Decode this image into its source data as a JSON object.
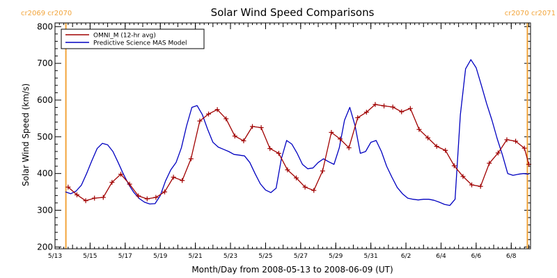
{
  "chart_data": {
    "type": "line",
    "title": "Solar Wind Speed Comparisons",
    "xlabel": "Month/Day from 2008-05-13 to 2008-06-09 (UT)",
    "ylabel": "Solar Wind Speed (km/s)",
    "x_unit": "day of year 2008",
    "xlim": [
      134,
      161.1
    ],
    "ylim": [
      195,
      810
    ],
    "yticks": [
      200,
      300,
      400,
      500,
      600,
      700,
      800
    ],
    "xticks": [
      {
        "value": 134,
        "label": "5/13"
      },
      {
        "value": 136,
        "label": "5/15"
      },
      {
        "value": 138,
        "label": "5/17"
      },
      {
        "value": 140,
        "label": "5/19"
      },
      {
        "value": 142,
        "label": "5/21"
      },
      {
        "value": 144,
        "label": "5/23"
      },
      {
        "value": 146,
        "label": "5/25"
      },
      {
        "value": 148,
        "label": "5/27"
      },
      {
        "value": 150,
        "label": "5/29"
      },
      {
        "value": 152,
        "label": "5/31"
      },
      {
        "value": 154,
        "label": "6/2"
      },
      {
        "value": 156,
        "label": "6/4"
      },
      {
        "value": 158,
        "label": "6/6"
      },
      {
        "value": 160,
        "label": "6/8"
      }
    ],
    "carrington_markers": [
      {
        "x": 134.62,
        "label": "cr2069 cr2070",
        "label_side": "left"
      },
      {
        "x": 160.92,
        "label": "cr2070 cr2071",
        "label_side": "right"
      }
    ],
    "legend_position": "top-left",
    "series": [
      {
        "name": "OMNI_M (12-hr avg)",
        "color": "#a00000",
        "marker": "+",
        "x": [
          134.75,
          135.25,
          135.75,
          136.25,
          136.75,
          137.25,
          137.75,
          138.25,
          138.75,
          139.25,
          139.75,
          140.25,
          140.75,
          141.25,
          141.75,
          142.25,
          142.75,
          143.25,
          143.75,
          144.25,
          144.75,
          145.25,
          145.75,
          146.25,
          146.75,
          147.25,
          147.75,
          148.25,
          148.75,
          149.25,
          149.75,
          150.25,
          150.75,
          151.25,
          151.75,
          152.25,
          152.75,
          153.25,
          153.75,
          154.25,
          154.75,
          155.25,
          155.75,
          156.25,
          156.75,
          157.25,
          157.75,
          158.25,
          158.75,
          159.25,
          159.75,
          160.25,
          160.75,
          161.0
        ],
        "values": [
          363,
          342,
          326,
          333,
          335,
          376,
          398,
          371,
          339,
          331,
          335,
          350,
          390,
          381,
          440,
          543,
          562,
          574,
          549,
          502,
          489,
          528,
          525,
          468,
          455,
          410,
          388,
          363,
          354,
          407,
          512,
          494,
          470,
          552,
          567,
          588,
          584,
          581,
          568,
          577,
          520,
          497,
          474,
          463,
          421,
          392,
          369,
          365,
          428,
          456,
          492,
          488,
          469,
          425
        ]
      },
      {
        "name": "Predictive Science MAS Model",
        "color": "#0000c0",
        "marker": "none",
        "x": [
          134.6,
          134.9,
          135.2,
          135.5,
          135.8,
          136.1,
          136.4,
          136.7,
          137.0,
          137.3,
          137.6,
          137.9,
          138.2,
          138.5,
          138.8,
          139.1,
          139.4,
          139.7,
          140.0,
          140.3,
          140.6,
          140.9,
          141.2,
          141.5,
          141.8,
          142.1,
          142.4,
          142.7,
          143.0,
          143.3,
          143.6,
          143.9,
          144.2,
          144.5,
          144.8,
          145.1,
          145.4,
          145.7,
          146.0,
          146.3,
          146.6,
          146.9,
          147.2,
          147.5,
          147.8,
          148.1,
          148.4,
          148.7,
          149.0,
          149.3,
          149.6,
          149.9,
          150.2,
          150.5,
          150.8,
          151.1,
          151.4,
          151.7,
          152.0,
          152.3,
          152.6,
          152.9,
          153.2,
          153.5,
          153.8,
          154.1,
          154.4,
          154.7,
          155.0,
          155.3,
          155.6,
          155.9,
          156.2,
          156.5,
          156.8,
          157.1,
          157.4,
          157.7,
          158.0,
          158.3,
          158.6,
          158.9,
          159.2,
          159.5,
          159.8,
          160.1,
          160.4,
          160.7,
          161.0
        ],
        "values": [
          350,
          345,
          352,
          368,
          400,
          435,
          468,
          482,
          478,
          460,
          430,
          398,
          370,
          348,
          332,
          322,
          317,
          318,
          340,
          380,
          410,
          430,
          470,
          530,
          580,
          585,
          560,
          520,
          485,
          472,
          466,
          460,
          452,
          450,
          448,
          430,
          400,
          372,
          355,
          348,
          360,
          440,
          490,
          480,
          455,
          425,
          413,
          415,
          430,
          440,
          432,
          425,
          470,
          545,
          580,
          530,
          455,
          460,
          485,
          490,
          460,
          420,
          390,
          362,
          345,
          333,
          330,
          328,
          330,
          330,
          327,
          322,
          316,
          313,
          330,
          560,
          685,
          710,
          688,
          640,
          590,
          545,
          495,
          450,
          400,
          395,
          398,
          400,
          398
        ]
      }
    ]
  }
}
